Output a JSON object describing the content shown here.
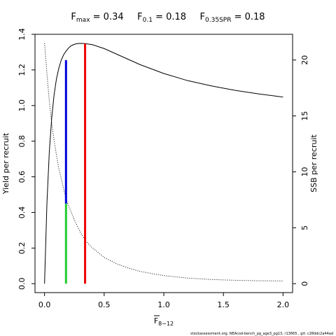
{
  "chart_data": {
    "type": "line",
    "title_parts": [
      {
        "base": "F",
        "sub": "max",
        "value": " = 0.34"
      },
      {
        "base": "F",
        "sub": "0.1",
        "value": " = 0.18"
      },
      {
        "base": "F",
        "sub": "0.35SPR",
        "value": " = 0.18"
      }
    ],
    "xlabel": {
      "base": "F",
      "sub": "8−12"
    },
    "ylabel_left": "Yield per recruit",
    "ylabel_right": "SSB per recruit",
    "xlim": [
      -0.08,
      2.08
    ],
    "ylim_left": [
      -0.05,
      1.4
    ],
    "ylim_right": [
      -0.8,
      22.3
    ],
    "x_ticks": [
      0,
      0.5,
      1,
      1.5,
      2
    ],
    "x_tick_labels": [
      "0.0",
      "0.5",
      "1.0",
      "1.5",
      "2.0"
    ],
    "y_left_ticks": [
      0,
      0.2,
      0.4,
      0.6,
      0.8,
      1,
      1.2,
      1.4
    ],
    "y_left_tick_labels": [
      "0.0",
      "0.2",
      "0.4",
      "0.6",
      "0.8",
      "1.0",
      "1.2",
      "1.4"
    ],
    "y_right_ticks": [
      0,
      5,
      10,
      15,
      20
    ],
    "y_right_tick_labels": [
      "0",
      "5",
      "10",
      "15",
      "20"
    ],
    "series": [
      {
        "axis": "left",
        "style": "solid",
        "color": "#000000",
        "x": [
          0,
          0.02,
          0.04,
          0.06,
          0.08,
          0.1,
          0.12,
          0.14,
          0.16,
          0.18,
          0.2,
          0.22,
          0.24,
          0.26,
          0.28,
          0.3,
          0.34,
          0.4,
          0.5,
          0.6,
          0.7,
          0.8,
          0.9,
          1.0,
          1.2,
          1.4,
          1.6,
          1.8,
          2.0
        ],
        "y": [
          0,
          0.45,
          0.74,
          0.93,
          1.06,
          1.15,
          1.21,
          1.255,
          1.285,
          1.305,
          1.322,
          1.334,
          1.341,
          1.346,
          1.348,
          1.349,
          1.348,
          1.342,
          1.32,
          1.29,
          1.26,
          1.23,
          1.205,
          1.18,
          1.14,
          1.11,
          1.085,
          1.065,
          1.048
        ]
      },
      {
        "axis": "right",
        "style": "dotted",
        "color": "#000000",
        "x": [
          0,
          0.02,
          0.04,
          0.06,
          0.08,
          0.1,
          0.12,
          0.14,
          0.16,
          0.18,
          0.2,
          0.25,
          0.3,
          0.34,
          0.4,
          0.5,
          0.6,
          0.7,
          0.8,
          0.9,
          1.0,
          1.2,
          1.4,
          1.6,
          1.8,
          2.0
        ],
        "y": [
          21.5,
          18.8,
          16.3,
          14.4,
          12.8,
          11.5,
          10.3,
          9.4,
          8.5,
          7.6,
          7.0,
          5.7,
          4.6,
          3.9,
          3.2,
          2.35,
          1.8,
          1.4,
          1.1,
          0.9,
          0.72,
          0.5,
          0.37,
          0.3,
          0.26,
          0.24
        ]
      }
    ],
    "reference_lines": [
      {
        "x": 0.18,
        "y_from": 0,
        "y_to": 0.45,
        "color": "#22cc33"
      },
      {
        "x": 0.18,
        "y_from": 0.45,
        "y_to": 1.255,
        "color": "#0000dd"
      },
      {
        "x": 0.34,
        "y_from": 0,
        "y_to": 1.348,
        "color": "#ee0000"
      }
    ]
  },
  "footer_text": "stockassessment.org, NEAcod-bench_pg_age3_pg13, r13665 , git: c28ddc2a44ad"
}
